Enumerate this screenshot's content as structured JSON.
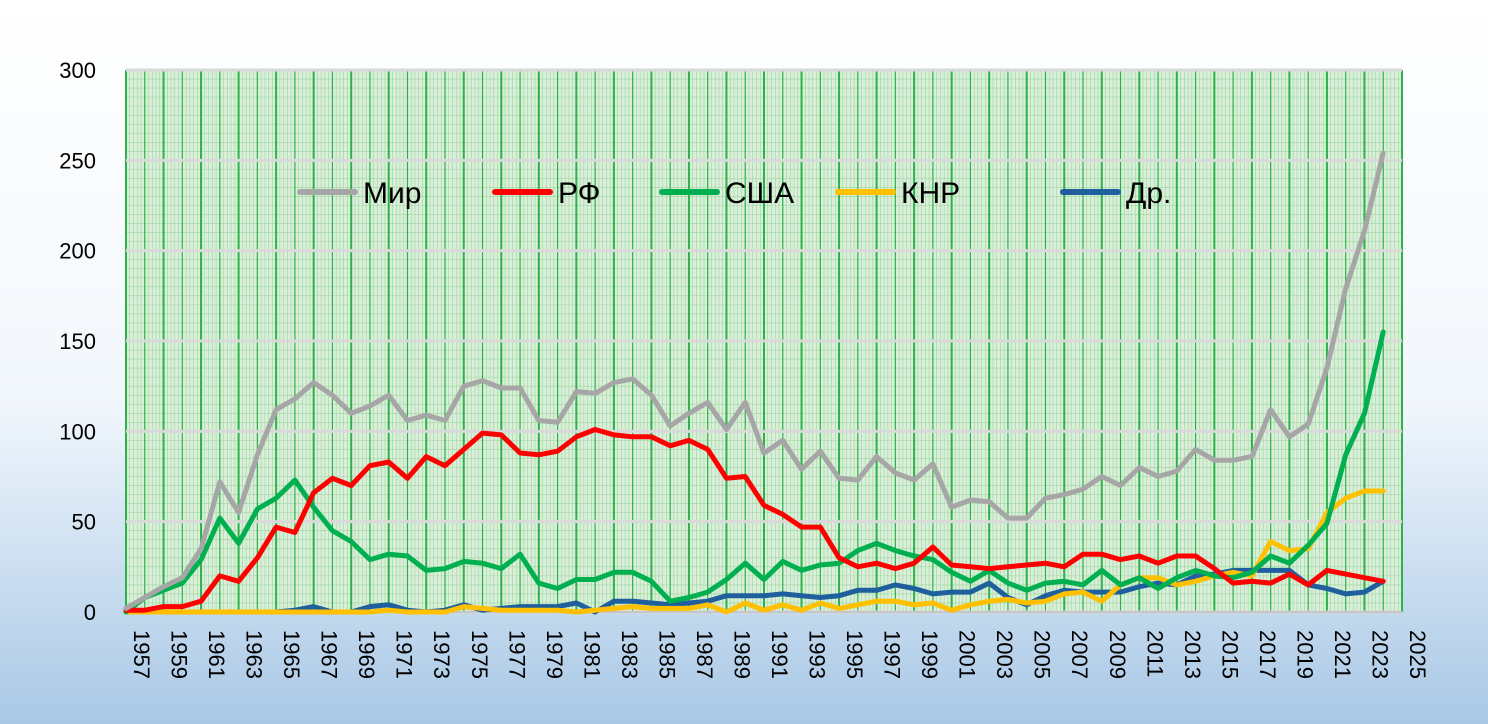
{
  "chart_data": {
    "type": "line",
    "title": "",
    "xlabel": "",
    "ylabel": "",
    "ylim": [
      0,
      300
    ],
    "y_ticks": [
      "0",
      "50",
      "100",
      "150",
      "200",
      "250",
      "300"
    ],
    "x": [
      1957,
      1958,
      1959,
      1960,
      1961,
      1962,
      1963,
      1964,
      1965,
      1966,
      1967,
      1968,
      1969,
      1970,
      1971,
      1972,
      1973,
      1974,
      1975,
      1976,
      1977,
      1978,
      1979,
      1980,
      1981,
      1982,
      1983,
      1984,
      1985,
      1986,
      1987,
      1988,
      1989,
      1990,
      1991,
      1992,
      1993,
      1994,
      1995,
      1996,
      1997,
      1998,
      1999,
      2000,
      2001,
      2002,
      2003,
      2004,
      2005,
      2006,
      2007,
      2008,
      2009,
      2010,
      2011,
      2012,
      2013,
      2014,
      2015,
      2016,
      2017,
      2018,
      2019,
      2020,
      2021,
      2022,
      2023,
      2024
    ],
    "x_tick_labels": [
      "1957",
      "1959",
      "1961",
      "1963",
      "1965",
      "1967",
      "1969",
      "1971",
      "1973",
      "1975",
      "1977",
      "1979",
      "1981",
      "1983",
      "1985",
      "1987",
      "1989",
      "1991",
      "1993",
      "1995",
      "1997",
      "1999",
      "2001",
      "2003",
      "2005",
      "2007",
      "2009",
      "2011",
      "2013",
      "2015",
      "2017",
      "2019",
      "2021",
      "2023",
      "2025"
    ],
    "legend_position": "top, inside plot",
    "grid": true,
    "series": [
      {
        "name": "Мир",
        "color": "#a6a6a6",
        "values": [
          2,
          8,
          14,
          19,
          35,
          72,
          55,
          87,
          112,
          118,
          127,
          120,
          110,
          114,
          120,
          106,
          109,
          106,
          125,
          128,
          124,
          124,
          106,
          105,
          122,
          121,
          127,
          129,
          120,
          103,
          110,
          116,
          101,
          116,
          88,
          95,
          79,
          89,
          74,
          73,
          86,
          77,
          73,
          82,
          58,
          62,
          61,
          52,
          52,
          63,
          65,
          68,
          75,
          70,
          80,
          75,
          78,
          90,
          84,
          84,
          86,
          112,
          97,
          104,
          135,
          179,
          211,
          254
        ]
      },
      {
        "name": "РФ",
        "color": "#ff0000",
        "values": [
          1,
          1,
          3,
          3,
          6,
          20,
          17,
          30,
          47,
          44,
          66,
          74,
          70,
          81,
          83,
          74,
          86,
          81,
          90,
          99,
          98,
          88,
          87,
          89,
          97,
          101,
          98,
          97,
          97,
          92,
          95,
          90,
          74,
          75,
          59,
          54,
          47,
          47,
          30,
          25,
          27,
          24,
          27,
          36,
          26,
          25,
          24,
          25,
          26,
          27,
          25,
          32,
          32,
          29,
          31,
          27,
          31,
          31,
          24,
          16,
          17,
          16,
          21,
          15,
          23,
          21,
          19,
          17
        ]
      },
      {
        "name": "США",
        "color": "#00b050",
        "values": [
          0,
          8,
          12,
          16,
          29,
          52,
          38,
          57,
          63,
          73,
          58,
          45,
          39,
          29,
          32,
          31,
          23,
          24,
          28,
          27,
          24,
          32,
          16,
          13,
          18,
          18,
          22,
          22,
          17,
          6,
          8,
          11,
          18,
          27,
          18,
          28,
          23,
          26,
          27,
          34,
          38,
          34,
          31,
          29,
          22,
          17,
          23,
          16,
          12,
          16,
          17,
          15,
          23,
          15,
          19,
          13,
          19,
          23,
          20,
          19,
          22,
          31,
          27,
          37,
          49,
          87,
          110,
          155
        ]
      },
      {
        "name": "КНР",
        "color": "#ffc000",
        "values": [
          0,
          0,
          0,
          0,
          0,
          0,
          0,
          0,
          0,
          0,
          0,
          0,
          0,
          0,
          1,
          0,
          0,
          0,
          3,
          2,
          1,
          1,
          1,
          1,
          0,
          1,
          2,
          3,
          2,
          2,
          2,
          4,
          0,
          5,
          1,
          4,
          1,
          5,
          2,
          4,
          6,
          6,
          4,
          5,
          1,
          4,
          6,
          7,
          5,
          6,
          10,
          11,
          6,
          15,
          19,
          19,
          15,
          17,
          20,
          22,
          20,
          39,
          34,
          35,
          55,
          63,
          67,
          67
        ]
      },
      {
        "name": "Др.",
        "color": "#1f5f9e",
        "values": [
          0,
          0,
          0,
          0,
          0,
          0,
          0,
          0,
          0,
          1,
          3,
          0,
          0,
          3,
          4,
          1,
          0,
          1,
          4,
          1,
          2,
          3,
          3,
          3,
          5,
          0,
          6,
          6,
          5,
          4,
          5,
          6,
          9,
          9,
          9,
          10,
          9,
          8,
          9,
          12,
          12,
          15,
          13,
          10,
          11,
          11,
          16,
          8,
          4,
          9,
          12,
          11,
          11,
          11,
          14,
          16,
          15,
          20,
          21,
          23,
          23,
          23,
          23,
          15,
          13,
          10,
          11,
          17
        ]
      }
    ]
  }
}
